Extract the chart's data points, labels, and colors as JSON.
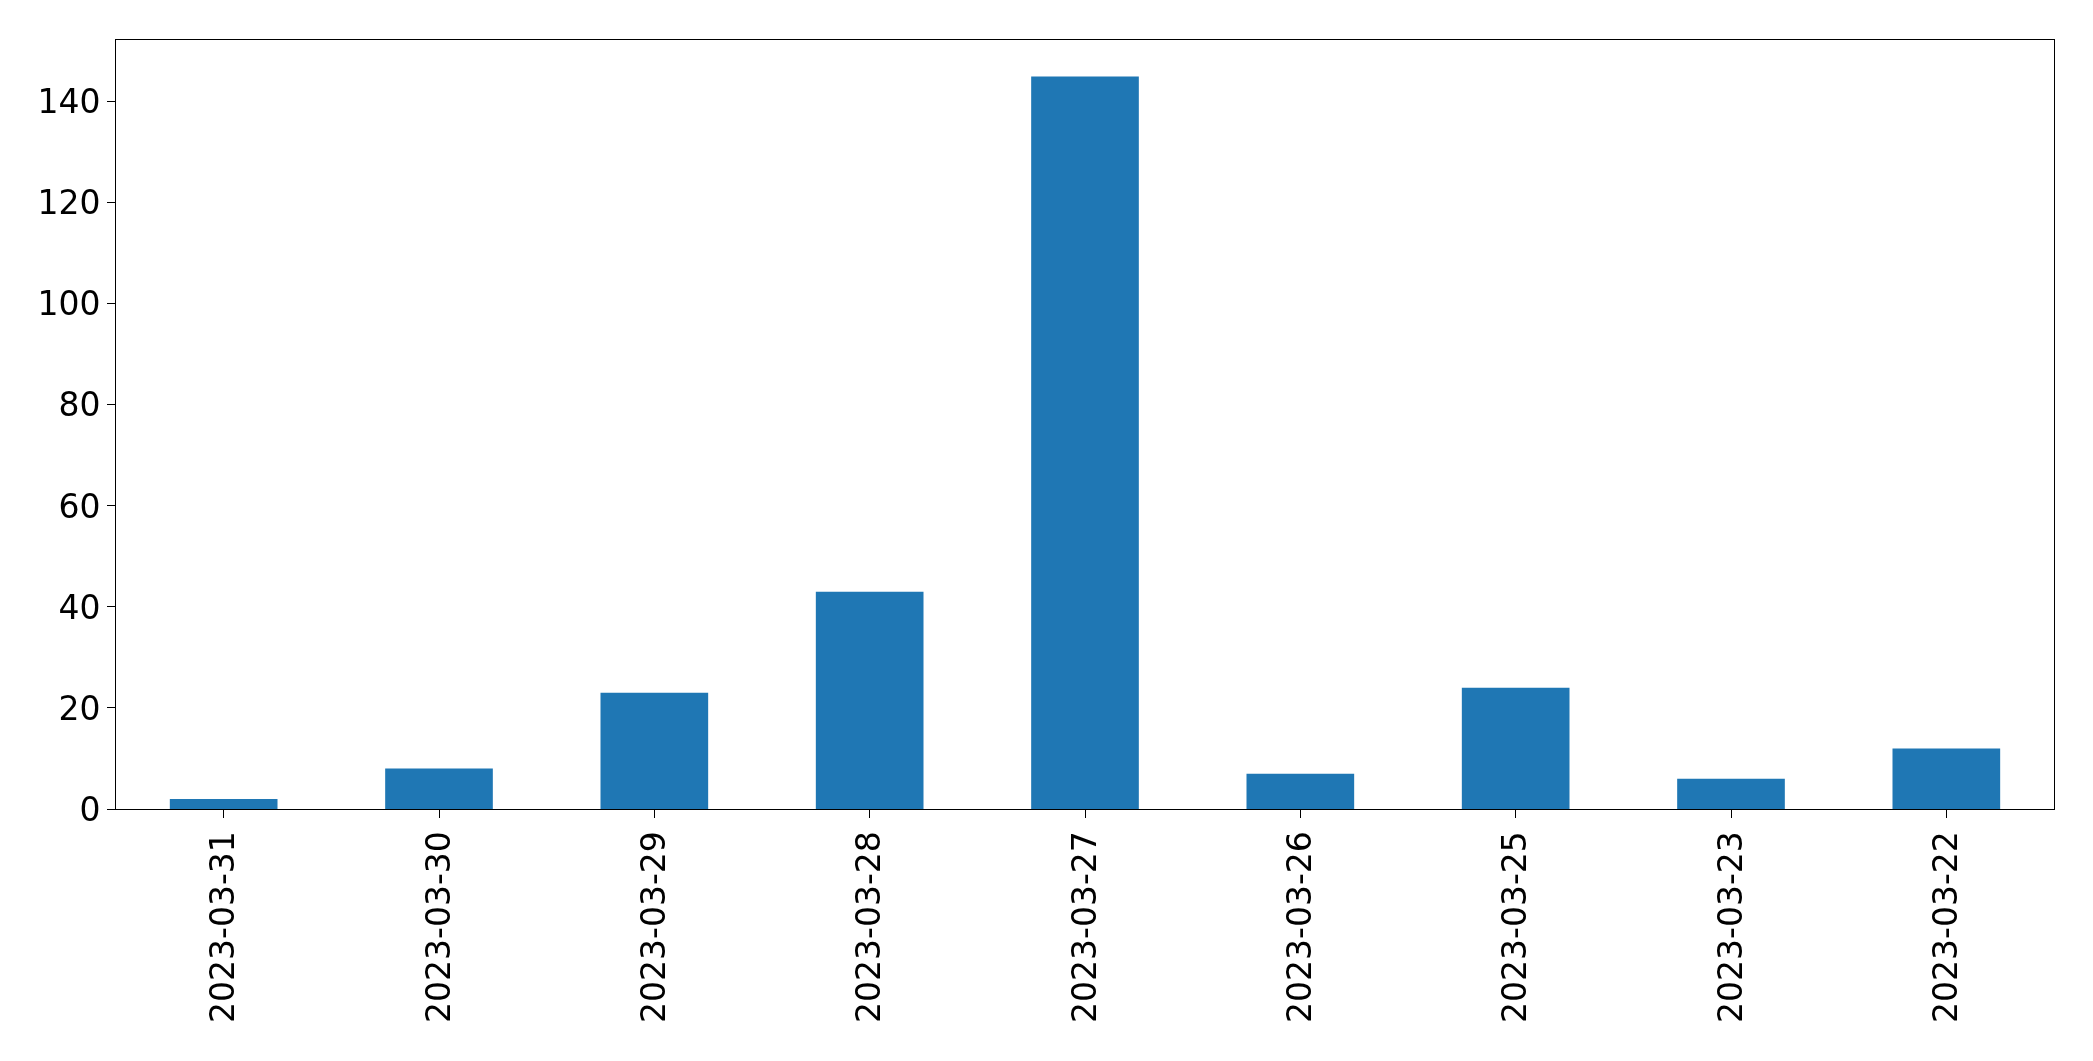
{
  "chart_data": {
    "type": "bar",
    "categories": [
      "2023-03-31",
      "2023-03-30",
      "2023-03-29",
      "2023-03-28",
      "2023-03-27",
      "2023-03-26",
      "2023-03-25",
      "2023-03-23",
      "2023-03-22"
    ],
    "values": [
      2,
      8,
      23,
      43,
      145,
      7,
      24,
      6,
      12
    ],
    "color": "#1f77b4",
    "ylim": [
      0,
      152.25
    ],
    "yticks": [
      0,
      20,
      40,
      60,
      80,
      100,
      120,
      140
    ],
    "legend": false
  }
}
